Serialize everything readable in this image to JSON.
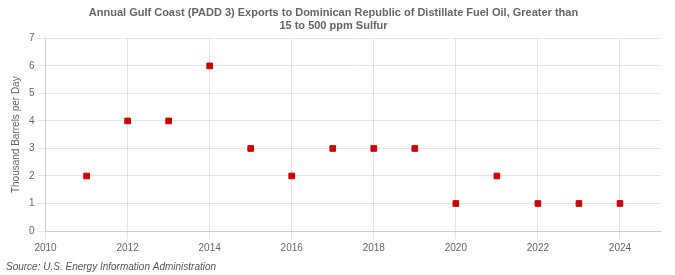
{
  "chart_data": {
    "type": "scatter",
    "title": "Annual Gulf Coast (PADD 3) Exports to Dominican Republic of Distillate Fuel Oil, Greater than\n15 to 500 ppm Sulfur",
    "ylabel": "Thousand Barrels per Day",
    "annotations": [
      "Source: U.S. Energy Information Administration"
    ],
    "x": [
      2011,
      2012,
      2013,
      2014,
      2015,
      2016,
      2017,
      2018,
      2019,
      2020,
      2021,
      2022,
      2023,
      2024
    ],
    "values": [
      2,
      4,
      4,
      6,
      3,
      2,
      3,
      3,
      3,
      1,
      2,
      1,
      1,
      1
    ],
    "color": "#cc0000",
    "marker": "square",
    "xlim": [
      2010,
      2025
    ],
    "ylim": [
      0,
      7
    ],
    "xticks": [
      2010,
      2012,
      2014,
      2016,
      2018,
      2020,
      2022,
      2024
    ],
    "yticks": [
      0,
      1,
      2,
      3,
      4,
      5,
      6,
      7
    ],
    "grid": true
  }
}
